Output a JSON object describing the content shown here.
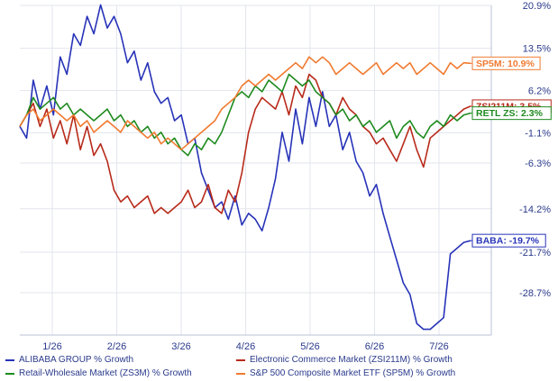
{
  "chart_data": {
    "type": "line",
    "x_ticks": [
      "1/26",
      "2/26",
      "3/26",
      "4/26",
      "5/26",
      "6/26",
      "7/26"
    ],
    "y_ticks": [
      "20.9%",
      "13.5%",
      "6.2%",
      "-1.1%",
      "-6.3%",
      "-14.2%",
      "-21.7%",
      "-28.7%"
    ],
    "ylim": [
      -36,
      20.9
    ],
    "grid": true,
    "series": [
      {
        "name": "ALIBABA GROUP % Growth",
        "tag": "BABA: -19.7%",
        "color": "#2733b8",
        "values": [
          0,
          -2,
          8,
          3,
          7,
          2,
          12,
          9,
          16,
          14,
          19,
          16,
          21,
          17,
          19,
          16,
          11,
          13,
          8,
          11,
          6,
          4,
          5,
          1,
          2,
          -3,
          -2,
          -8,
          -11,
          -14,
          -13,
          -16,
          -12,
          -17,
          -15,
          -16,
          -18,
          -14,
          -9,
          -1,
          -6,
          3,
          -3,
          5,
          0,
          6,
          0,
          2,
          -4,
          -1,
          -6,
          -8,
          -12,
          -10,
          -15,
          -19,
          -23,
          -27,
          -29,
          -34,
          -35,
          -35,
          -34,
          -33,
          -22,
          -21,
          -20,
          -19.7
        ]
      },
      {
        "name": "Electronic Commerce Market (ZSI211M) % Growth",
        "tag": "ZSI211M: 3.5%",
        "color": "#b82a1a",
        "values": [
          0,
          2,
          4,
          0,
          3,
          -2,
          1,
          -3,
          2,
          -4,
          0,
          -5,
          -3,
          -6,
          -11,
          -13,
          -12,
          -14,
          -13,
          -12,
          -15,
          -14,
          -15,
          -14,
          -13,
          -11,
          -14,
          -13,
          -10,
          -14,
          -15,
          -11,
          -13,
          -8,
          -1,
          3,
          5,
          4,
          3,
          6,
          2,
          7,
          5,
          9,
          8,
          5,
          4,
          2,
          5,
          3,
          2,
          0,
          -1,
          -3,
          -2,
          -4,
          -6,
          -3,
          0,
          -4,
          -7,
          -2,
          -1,
          0,
          1,
          2,
          3,
          3.5
        ]
      },
      {
        "name": "Retail-Wholesale Market (ZS3M) % Growth",
        "tag": "RETL ZS: 2.3%",
        "color": "#1e8a1e",
        "values": [
          0,
          2,
          5,
          3,
          4,
          5,
          3,
          4,
          2,
          3,
          2,
          1,
          2,
          3,
          1,
          2,
          0,
          1,
          -1,
          0,
          -2,
          -1,
          -3,
          -2,
          -4,
          -5,
          -3,
          -4,
          -2,
          -3,
          -1,
          2,
          5,
          6,
          5,
          7,
          6,
          8,
          7,
          6,
          9,
          8,
          7,
          8,
          6,
          5,
          4,
          2,
          3,
          1,
          2,
          0,
          1,
          -1,
          0,
          1,
          -2,
          0,
          1,
          -1,
          -2,
          0,
          1,
          0,
          2,
          1,
          2,
          2.3
        ]
      },
      {
        "name": "S&P 500 Composite Market ETF (SP5M) % Growth",
        "tag": "SP5M: 10.9%",
        "color": "#f07a30",
        "values": [
          0,
          2,
          3,
          1,
          2,
          3,
          2,
          1,
          2,
          0,
          1,
          -1,
          0,
          1,
          0,
          -1,
          1,
          0,
          -1,
          -2,
          -1,
          -3,
          -2,
          -3,
          -4,
          -3,
          -2,
          -1,
          0,
          1,
          3,
          4,
          5,
          7,
          8,
          7,
          8,
          9,
          8,
          9,
          10,
          11,
          10,
          12,
          11,
          12,
          11,
          9,
          10,
          11,
          10,
          9,
          10,
          11,
          9,
          10,
          11,
          10,
          11,
          9,
          10,
          11,
          10,
          9,
          11,
          10,
          11,
          10.9
        ]
      }
    ]
  },
  "legend": [
    {
      "label": "ALIBABA GROUP % Growth",
      "color": "#2733b8"
    },
    {
      "label": "Electronic Commerce Market (ZSI211M) % Growth",
      "color": "#b82a1a"
    },
    {
      "label": "Retail-Wholesale Market (ZS3M) % Growth",
      "color": "#1e8a1e"
    },
    {
      "label": "S&P 500 Composite Market ETF (SP5M) % Growth",
      "color": "#f07a30"
    }
  ]
}
